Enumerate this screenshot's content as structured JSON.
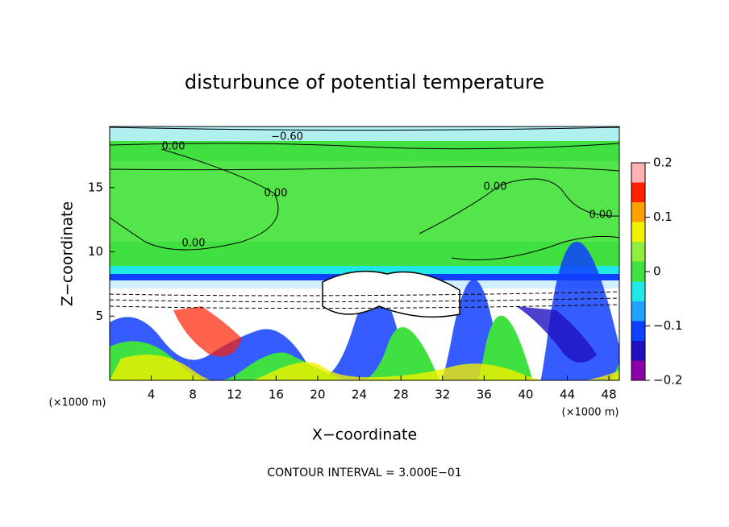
{
  "chart_data": {
    "type": "contour",
    "title": "disturbunce of potential temperature",
    "x_label": "X−coordinate",
    "y_label": "Z−coordinate",
    "x_unit": "(×1000 m)",
    "y_unit": "(×1000 m)",
    "note": "CONTOUR INTERVAL = 3.000E−01",
    "xlim": [
      0,
      49
    ],
    "xticks": [
      4,
      8,
      12,
      16,
      20,
      24,
      28,
      32,
      36,
      40,
      44,
      48
    ],
    "ylim": [
      0,
      19.75
    ],
    "yticks": [
      5,
      10,
      15
    ],
    "clim": [
      -0.2,
      0.2
    ],
    "cticks": [
      {
        "value": -0.2,
        "label": "−0.2"
      },
      {
        "value": -0.1,
        "label": "−0.1"
      },
      0,
      0.1,
      0.2
    ],
    "colormap": [
      "#8b00a8",
      "#2010c0",
      "#1040ff",
      "#20a0ff",
      "#20e8e8",
      "#40e040",
      "#90ee40",
      "#f0f000",
      "#ffa000",
      "#ff2000",
      "#ffb0b0"
    ],
    "contour_labels": [
      "0.00",
      "−0.60",
      "0.00",
      "0.00",
      "0.00",
      "0.00"
    ]
  }
}
